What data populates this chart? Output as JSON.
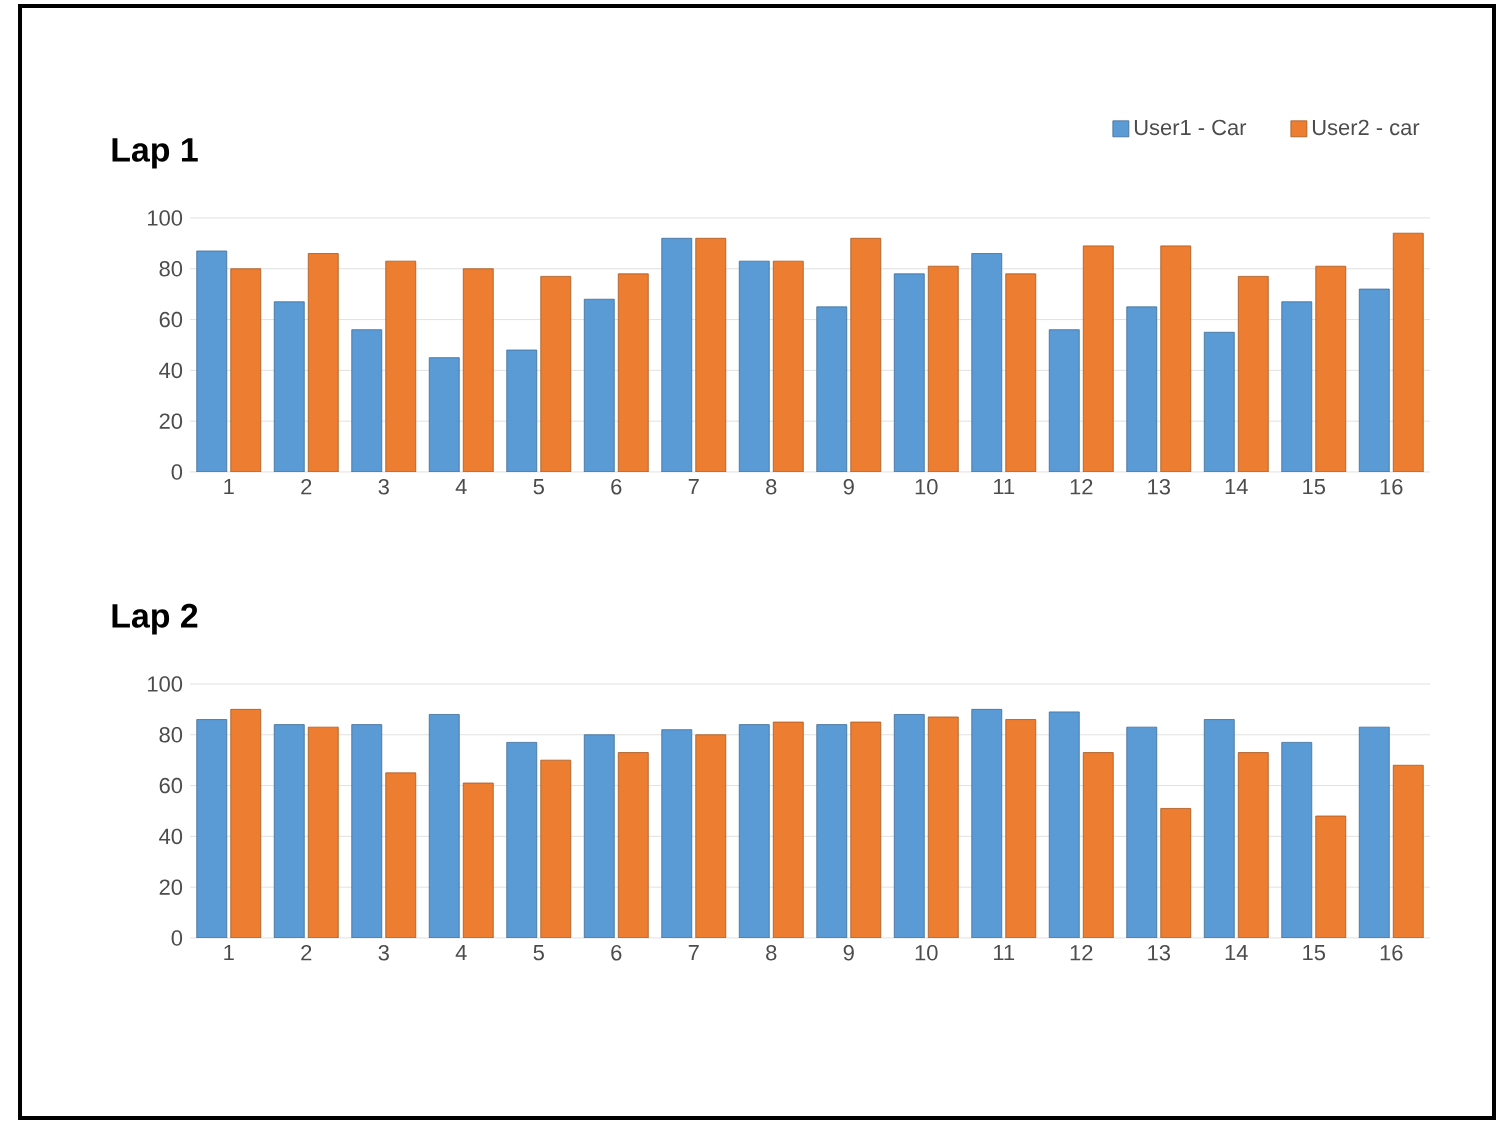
{
  "chart_data": [
    {
      "type": "bar",
      "title": "Lap 1",
      "categories": [
        "1",
        "2",
        "3",
        "4",
        "5",
        "6",
        "7",
        "8",
        "9",
        "10",
        "11",
        "12",
        "13",
        "14",
        "15",
        "16"
      ],
      "series": [
        {
          "name": "User1 - Car",
          "color": "#5b9bd5",
          "values": [
            87,
            67,
            56,
            45,
            48,
            68,
            92,
            83,
            65,
            78,
            86,
            56,
            65,
            55,
            67,
            72
          ]
        },
        {
          "name": "User2 - car",
          "color": "#ed7d31",
          "values": [
            80,
            86,
            83,
            80,
            77,
            78,
            92,
            83,
            92,
            81,
            78,
            89,
            89,
            77,
            81,
            94
          ]
        }
      ],
      "ylim": [
        0,
        100
      ],
      "yticks": [
        0,
        20,
        40,
        60,
        80,
        100
      ],
      "grid": "y",
      "legend": "top right"
    },
    {
      "type": "bar",
      "title": "Lap 2",
      "categories": [
        "1",
        "2",
        "3",
        "4",
        "5",
        "6",
        "7",
        "8",
        "9",
        "10",
        "11",
        "12",
        "13",
        "14",
        "15",
        "16"
      ],
      "series": [
        {
          "color": "#5b9bd5",
          "values": [
            86,
            84,
            84,
            88,
            77,
            80,
            82,
            84,
            84,
            88,
            90,
            89,
            83,
            86,
            77,
            83
          ]
        },
        {
          "color": "#ed7d31",
          "values": [
            90,
            83,
            65,
            61,
            70,
            73,
            80,
            85,
            85,
            87,
            86,
            73,
            51,
            73,
            48,
            68
          ]
        }
      ],
      "ylim": [
        0,
        100
      ],
      "yticks": [
        0,
        20,
        40,
        60,
        80,
        100
      ],
      "grid": "y"
    }
  ]
}
